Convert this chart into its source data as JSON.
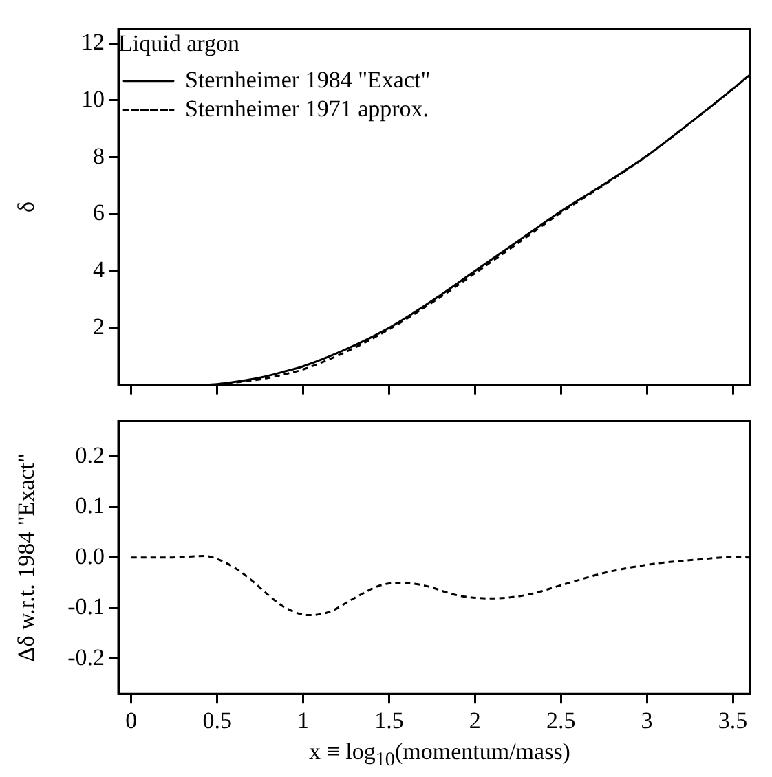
{
  "chart_data": [
    {
      "type": "line",
      "ylabel": "δ",
      "legend_title": "Liquid argon",
      "legend": "top left",
      "marker": "none",
      "tick_labels": "y",
      "xlim": [
        -0.075,
        3.6
      ],
      "xticks": [
        0,
        0.5,
        1,
        1.5,
        2,
        2.5,
        3,
        3.5
      ],
      "ylim": [
        0,
        12.5
      ],
      "yticks": [
        2,
        4,
        6,
        8,
        10,
        12
      ],
      "series": [
        {
          "name": "Sternheimer 1984 \"Exact\"",
          "color": "#000000",
          "line_style": "solid",
          "x": [
            0.45,
            0.5,
            0.6,
            0.75,
            0.9,
            1,
            1.25,
            1.5,
            1.75,
            2,
            2.25,
            2.5,
            2.75,
            3,
            3.25,
            3.5,
            3.6
          ],
          "values": [
            0,
            0.02,
            0.1,
            0.25,
            0.48,
            0.65,
            1.25,
            2.0,
            2.95,
            4.0,
            5.05,
            6.1,
            7.05,
            8.05,
            9.2,
            10.4,
            10.9
          ]
        },
        {
          "name": "Sternheimer 1971 approx.",
          "color": "#000000",
          "line_style": "dashed",
          "x": [
            0.5,
            0.6,
            0.75,
            0.9,
            1,
            1.25,
            1.5,
            1.75,
            2,
            2.25,
            2.5,
            2.75,
            3,
            3.25,
            3.5,
            3.6
          ],
          "values": [
            0.02,
            0.08,
            0.19,
            0.38,
            0.54,
            1.16,
            1.95,
            2.89,
            3.92,
            4.98,
            6.05,
            7.02,
            8.04,
            9.2,
            10.4,
            10.9
          ]
        }
      ]
    },
    {
      "type": "line",
      "ylabel": "Δδ w.r.t. 1984 \"Exact\"",
      "xlabel": "x ≡ log$_{10}$(momentum/mass)",
      "marker": "none",
      "xlim": [
        -0.075,
        3.6
      ],
      "xticks": [
        0,
        0.5,
        1,
        1.5,
        2,
        2.5,
        3,
        3.5
      ],
      "ylim": [
        -0.27,
        0.27
      ],
      "yticks": [
        {
          "value": -0.2,
          "label": "-0.2"
        },
        {
          "value": -0.1,
          "label": "-0.1"
        },
        {
          "value": 0,
          "label": "0.0"
        },
        {
          "value": 0.1,
          "label": "0.1"
        },
        {
          "value": 0.2,
          "label": "0.2"
        }
      ],
      "series": [
        {
          "color": "#000000",
          "line_style": "dashed",
          "x": [
            0,
            0.2,
            0.43,
            0.5,
            0.6,
            0.7,
            0.8,
            0.9,
            1.03,
            1.15,
            1.3,
            1.45,
            1.57,
            1.7,
            1.9,
            2.1,
            2.3,
            2.5,
            2.7,
            2.9,
            3.1,
            3.3,
            3.5,
            3.6
          ],
          "values": [
            0,
            0,
            0.003,
            -0.003,
            -0.02,
            -0.045,
            -0.075,
            -0.1,
            -0.114,
            -0.108,
            -0.08,
            -0.055,
            -0.05,
            -0.055,
            -0.075,
            -0.081,
            -0.074,
            -0.055,
            -0.035,
            -0.02,
            -0.01,
            -0.004,
            0.001,
            0
          ]
        }
      ]
    }
  ]
}
